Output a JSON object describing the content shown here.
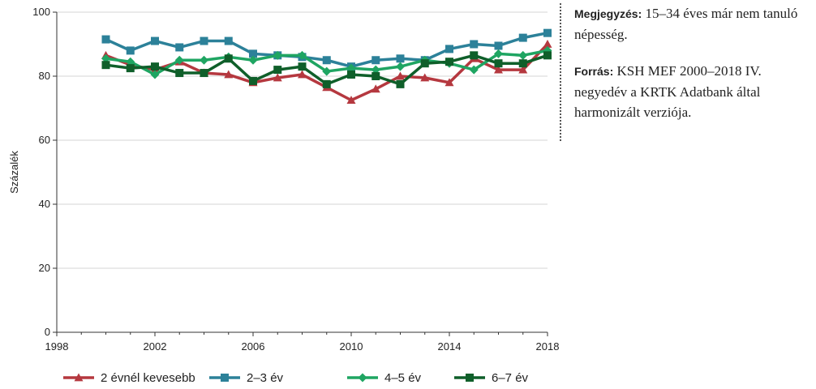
{
  "chart_data": {
    "type": "line",
    "title": "",
    "xlabel": "",
    "ylabel": "Százalék",
    "xlim": [
      1998,
      2018
    ],
    "ylim": [
      0,
      100
    ],
    "x_ticks": [
      1998,
      2002,
      2006,
      2010,
      2014,
      2018
    ],
    "y_ticks": [
      0,
      20,
      40,
      60,
      80,
      100
    ],
    "grid": "horizontal",
    "legend_position": "bottom",
    "x": [
      2000,
      2001,
      2002,
      2003,
      2004,
      2005,
      2006,
      2007,
      2008,
      2009,
      2010,
      2011,
      2012,
      2013,
      2014,
      2015,
      2016,
      2017,
      2018
    ],
    "series": [
      {
        "name": "2 évnél kevesebb",
        "color": "#b5383f",
        "marker": "triangle",
        "values": [
          86.5,
          83.5,
          82,
          84.5,
          81,
          80.5,
          78,
          79.5,
          80.5,
          76.5,
          72.5,
          76,
          80,
          79.5,
          78,
          85.5,
          82,
          82,
          90
        ]
      },
      {
        "name": "2–3 év",
        "color": "#2c8199",
        "marker": "square",
        "values": [
          91.5,
          88,
          91,
          89,
          91,
          91,
          87,
          86.5,
          86,
          85,
          83,
          85,
          85.5,
          85,
          88.5,
          90,
          89.5,
          92,
          93.5
        ]
      },
      {
        "name": "4–5 év",
        "color": "#1fa562",
        "marker": "diamond",
        "values": [
          85.5,
          84.5,
          80.5,
          85,
          85,
          86,
          85,
          86.5,
          86.5,
          81.5,
          82.5,
          82,
          83,
          85,
          84,
          82,
          87,
          86.5,
          88
        ]
      },
      {
        "name": "6–7 év",
        "color": "#0f5f2a",
        "marker": "square",
        "values": [
          83.5,
          82.5,
          83,
          81,
          81,
          85.5,
          78.5,
          82,
          83,
          77.5,
          80.5,
          80,
          77.5,
          84,
          84.5,
          86.5,
          84,
          84,
          86.5
        ]
      }
    ]
  },
  "notes": {
    "note_label": "Megjegyzés:",
    "note_text": " 15–34 éves már nem tanuló népesség.",
    "source_label": "Forrás:",
    "source_text": " KSH MEF 2000–2018 IV. negyedév a KRTK Adatbank által harmonizált verziója."
  }
}
